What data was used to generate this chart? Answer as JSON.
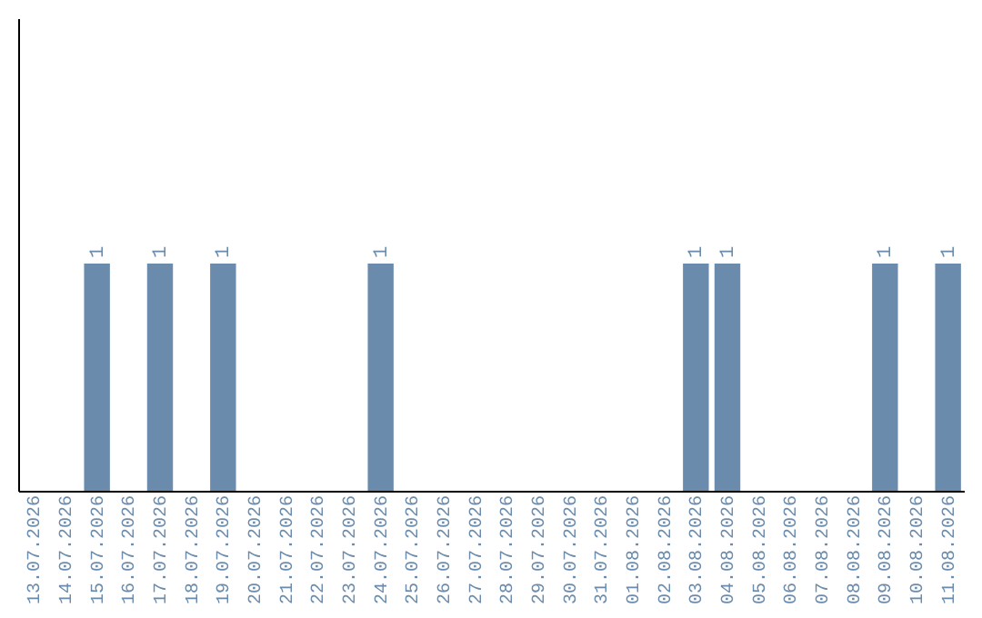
{
  "chart_data": {
    "type": "bar",
    "categories": [
      "13.07.2026",
      "14.07.2026",
      "15.07.2026",
      "16.07.2026",
      "17.07.2026",
      "18.07.2026",
      "19.07.2026",
      "20.07.2026",
      "21.07.2026",
      "22.07.2026",
      "23.07.2026",
      "24.07.2026",
      "25.07.2026",
      "26.07.2026",
      "27.07.2026",
      "28.07.2026",
      "29.07.2026",
      "30.07.2026",
      "31.07.2026",
      "01.08.2026",
      "02.08.2026",
      "03.08.2026",
      "04.08.2026",
      "05.08.2026",
      "06.08.2026",
      "07.08.2026",
      "08.08.2026",
      "09.08.2026",
      "10.08.2026",
      "11.08.2026"
    ],
    "values": [
      0,
      0,
      1,
      0,
      1,
      0,
      1,
      0,
      0,
      0,
      0,
      1,
      0,
      0,
      0,
      0,
      0,
      0,
      0,
      0,
      0,
      1,
      1,
      0,
      0,
      0,
      0,
      1,
      0,
      1
    ],
    "value_labels": [
      null,
      null,
      "1",
      null,
      "1",
      null,
      "1",
      null,
      null,
      null,
      null,
      "1",
      null,
      null,
      null,
      null,
      null,
      null,
      null,
      null,
      null,
      "1",
      "1",
      null,
      null,
      null,
      null,
      "1",
      null,
      "1"
    ],
    "color": "#6a8bab",
    "ylim": [
      0,
      2.08
    ],
    "tick_labels": "x",
    "grid": false
  }
}
